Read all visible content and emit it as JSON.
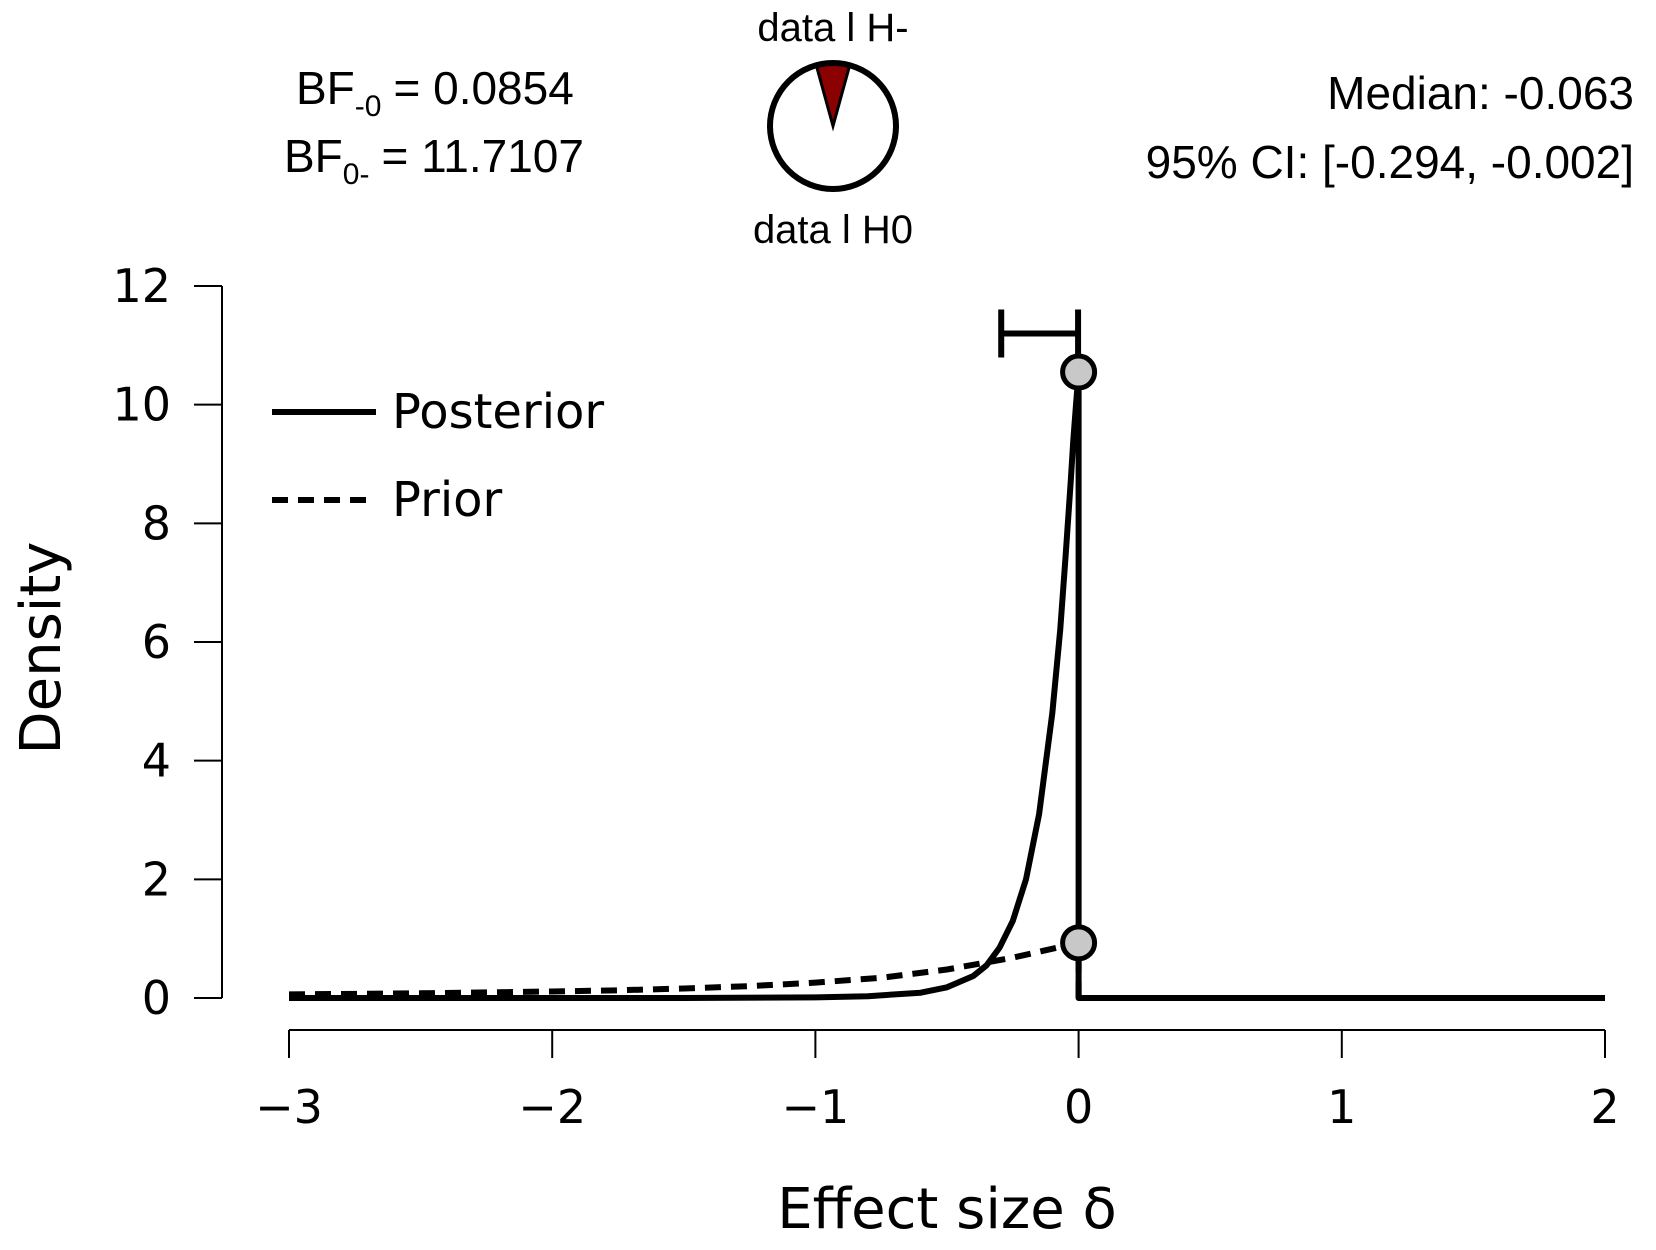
{
  "header": {
    "bf_minus0": {
      "label": "BF",
      "sub": "-0",
      "value": "= 0.0854"
    },
    "bf_0minus": {
      "label": "BF",
      "sub": "0-",
      "value": "= 11.7107"
    },
    "pie": {
      "top_label": "data l H-",
      "bottom_label": "data l H0",
      "fraction_h_minus": 0.0854,
      "fill_color": "#8b0000"
    },
    "median_text": "Median: -0.063",
    "ci_text": "95% CI: [-0.294, -0.002]"
  },
  "chart_data": {
    "type": "line",
    "xlabel": "Effect size δ",
    "ylabel": "Density",
    "xlim": [
      -3,
      2
    ],
    "ylim": [
      0,
      12
    ],
    "xticks": [
      -3,
      -2,
      -1,
      0,
      1,
      2
    ],
    "xtick_labels": [
      "−3",
      "−2",
      "−1",
      "0",
      "1",
      "2"
    ],
    "yticks": [
      0,
      2,
      4,
      6,
      8,
      10,
      12
    ],
    "ytick_labels": [
      "0",
      "2",
      "4",
      "6",
      "8",
      "10",
      "12"
    ],
    "legend": {
      "position": "top-left",
      "entries": [
        {
          "name": "Posterior",
          "style": "solid"
        },
        {
          "name": "Prior",
          "style": "dashed"
        }
      ]
    },
    "series": [
      {
        "name": "Posterior",
        "style": "solid",
        "x": [
          -3,
          -2,
          -1.5,
          -1,
          -0.8,
          -0.6,
          -0.5,
          -0.4,
          -0.35,
          -0.3,
          -0.25,
          -0.2,
          -0.15,
          -0.1,
          -0.07,
          -0.05,
          -0.03,
          -0.02,
          -0.01,
          0,
          0,
          2
        ],
        "y": [
          0,
          0,
          0,
          0.01,
          0.03,
          0.09,
          0.18,
          0.37,
          0.55,
          0.85,
          1.3,
          2.0,
          3.1,
          4.8,
          6.2,
          7.4,
          8.7,
          9.4,
          10.0,
          10.55,
          0,
          0
        ]
      },
      {
        "name": "Prior",
        "style": "dashed",
        "x": [
          -3,
          -2.5,
          -2,
          -1.75,
          -1.5,
          -1.25,
          -1,
          -0.75,
          -0.5,
          -0.25,
          0,
          0,
          2
        ],
        "y": [
          0.06,
          0.08,
          0.11,
          0.13,
          0.16,
          0.2,
          0.26,
          0.34,
          0.48,
          0.68,
          0.93,
          0,
          0
        ]
      }
    ],
    "points": [
      {
        "name": "posterior-at-zero",
        "x": 0,
        "y": 10.55,
        "fill": "#c8c8c8"
      },
      {
        "name": "prior-at-zero",
        "x": 0,
        "y": 0.93,
        "fill": "#c8c8c8"
      }
    ],
    "interval": {
      "name": "95% CI",
      "low": -0.294,
      "high": -0.002,
      "y": 11.2
    }
  }
}
